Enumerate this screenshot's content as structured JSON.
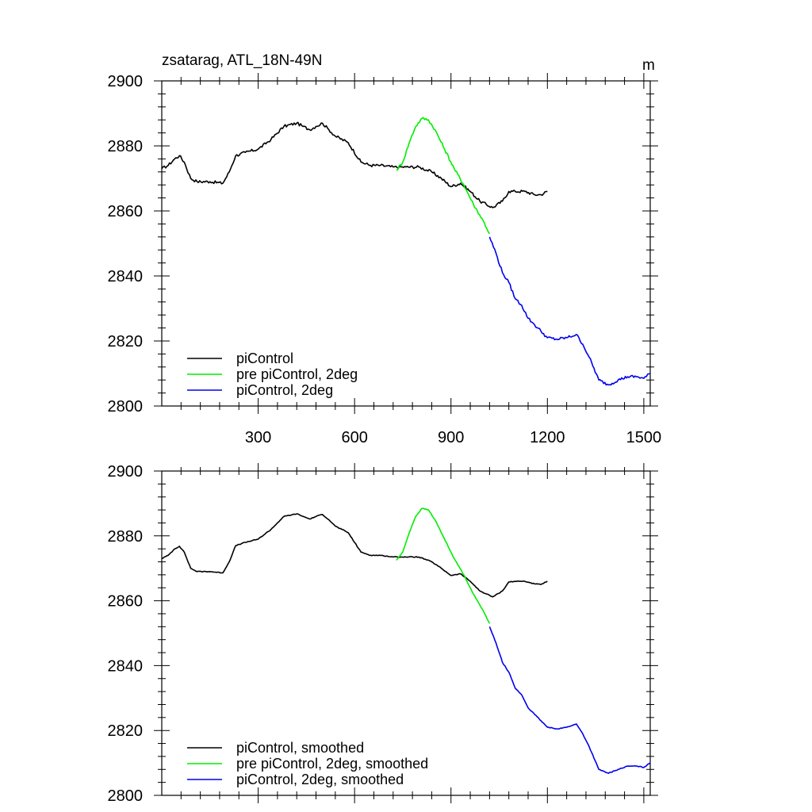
{
  "chart_data": [
    {
      "type": "line",
      "title": "zsatarag, ATL_18N-49N",
      "unit_label": "m",
      "xlim": [
        0,
        1520
      ],
      "ylim": [
        2800,
        2900
      ],
      "xticks": [
        300,
        600,
        900,
        1200,
        1500
      ],
      "yticks": [
        2800,
        2820,
        2840,
        2860,
        2880,
        2900
      ],
      "xtick_labels": [
        "300",
        "600",
        "900",
        "1200",
        "1500"
      ],
      "ytick_labels": [
        "2800",
        "2820",
        "2840",
        "2860",
        "2880",
        "2900"
      ],
      "legend_position": "bottom-left",
      "series": [
        {
          "name": "piControl",
          "color": "#000000",
          "x": [
            0,
            20,
            40,
            55,
            70,
            90,
            110,
            150,
            190,
            210,
            230,
            260,
            300,
            340,
            380,
            420,
            440,
            460,
            480,
            500,
            520,
            540,
            580,
            620,
            650,
            680,
            720,
            760,
            800,
            840,
            870,
            900,
            930,
            960,
            990,
            1030,
            1060,
            1080,
            1100,
            1130,
            1160,
            1180,
            1200
          ],
          "y": [
            2873,
            2874,
            2876,
            2877,
            2875,
            2870,
            2869,
            2869,
            2868.5,
            2872,
            2877,
            2878,
            2879,
            2882,
            2886,
            2887,
            2886,
            2885,
            2886,
            2887,
            2885,
            2883,
            2881,
            2875,
            2874,
            2874,
            2873.5,
            2873.5,
            2873.5,
            2872,
            2870,
            2867.5,
            2868.5,
            2866,
            2863,
            2861,
            2863,
            2866,
            2866,
            2866,
            2865,
            2865,
            2866
          ]
        },
        {
          "name": "pre piControl, 2deg",
          "color": "#00ee00",
          "x": [
            730,
            750,
            770,
            790,
            810,
            830,
            850,
            880,
            910,
            940,
            970,
            1000,
            1020
          ],
          "y": [
            2872.5,
            2875,
            2881,
            2886,
            2888.5,
            2888,
            2885,
            2879,
            2873,
            2868,
            2862,
            2857,
            2853
          ]
        },
        {
          "name": "piControl, 2deg",
          "color": "#0000ee",
          "x": [
            1020,
            1040,
            1060,
            1080,
            1100,
            1120,
            1140,
            1160,
            1180,
            1200,
            1230,
            1260,
            1290,
            1310,
            1330,
            1360,
            1390,
            1420,
            1450,
            1480,
            1500,
            1520
          ],
          "y": [
            2852,
            2847,
            2841,
            2838,
            2833,
            2831,
            2827,
            2825,
            2823,
            2821,
            2820.5,
            2821,
            2822,
            2819,
            2815,
            2808,
            2806.5,
            2808,
            2809,
            2809,
            2808.5,
            2810
          ]
        }
      ]
    },
    {
      "type": "line",
      "title": "",
      "xlim": [
        0,
        1520
      ],
      "ylim": [
        2800,
        2900
      ],
      "xticks": [
        300,
        600,
        900,
        1200,
        1500
      ],
      "yticks": [
        2800,
        2820,
        2840,
        2860,
        2880,
        2900
      ],
      "ytick_labels": [
        "2800",
        "2820",
        "2840",
        "2860",
        "2880",
        "2900"
      ],
      "legend_position": "bottom-left",
      "series": [
        {
          "name": "piControl, smoothed",
          "color": "#000000",
          "x": [
            0,
            20,
            40,
            55,
            70,
            90,
            110,
            150,
            190,
            210,
            230,
            260,
            300,
            340,
            380,
            420,
            440,
            460,
            480,
            500,
            520,
            540,
            580,
            620,
            650,
            680,
            720,
            760,
            800,
            840,
            870,
            900,
            930,
            960,
            990,
            1030,
            1060,
            1080,
            1100,
            1130,
            1160,
            1180,
            1200
          ],
          "y": [
            2873,
            2874,
            2876,
            2876.8,
            2875,
            2870,
            2869,
            2869,
            2868.6,
            2872,
            2877,
            2878,
            2879,
            2882,
            2886,
            2886.8,
            2886,
            2885.2,
            2886,
            2886.6,
            2885,
            2883,
            2881,
            2875,
            2874,
            2874,
            2873.5,
            2873.5,
            2873.5,
            2872,
            2870,
            2867.8,
            2868.3,
            2866,
            2863,
            2861.2,
            2863,
            2865.8,
            2866,
            2866,
            2865.2,
            2865,
            2866
          ]
        },
        {
          "name": "pre piControl, 2deg, smoothed",
          "color": "#00ee00",
          "x": [
            730,
            750,
            770,
            790,
            810,
            830,
            850,
            880,
            910,
            940,
            970,
            1000,
            1020
          ],
          "y": [
            2872.5,
            2875,
            2881,
            2886,
            2888.5,
            2888,
            2885,
            2879,
            2873,
            2868,
            2862,
            2857,
            2853
          ]
        },
        {
          "name": "piControl, 2deg, smoothed",
          "color": "#0000ee",
          "x": [
            1020,
            1040,
            1060,
            1080,
            1100,
            1120,
            1140,
            1160,
            1180,
            1200,
            1230,
            1260,
            1290,
            1310,
            1330,
            1360,
            1390,
            1420,
            1450,
            1480,
            1500,
            1520
          ],
          "y": [
            2852,
            2847,
            2841,
            2838,
            2833,
            2831,
            2827,
            2825,
            2823,
            2821,
            2820.5,
            2821,
            2822,
            2819,
            2815,
            2808,
            2806.8,
            2808,
            2809,
            2809,
            2808.6,
            2810
          ]
        }
      ]
    }
  ]
}
